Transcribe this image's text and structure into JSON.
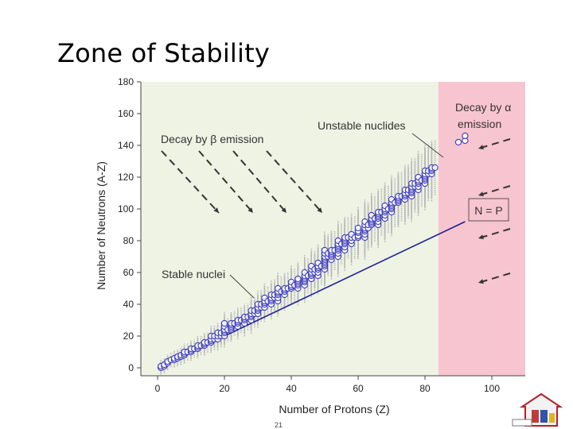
{
  "slide": {
    "title": "Zone of Stability",
    "page_number": "21"
  },
  "chart_data": {
    "type": "scatter",
    "xlabel": "Number of Protons (Z)",
    "ylabel": "Number of Neutrons (A-Z)",
    "xlim": [
      -5,
      110
    ],
    "ylim": [
      -5,
      180
    ],
    "x_ticks": [
      0,
      20,
      40,
      60,
      80,
      100
    ],
    "y_ticks": [
      0,
      20,
      40,
      60,
      80,
      100,
      120,
      140,
      160,
      180
    ],
    "alpha_region_start_z": 84,
    "annotations": {
      "beta": "Decay by β emission",
      "unstable": "Unstable nuclides",
      "alpha_line1": "Decay by α",
      "alpha_line2": "emission",
      "np": "N = P",
      "stable": "Stable nuclei"
    },
    "lines": [
      {
        "name": "N = P",
        "x": [
          0,
          92
        ],
        "y": [
          0,
          92
        ]
      }
    ],
    "stable_nuclei": [
      [
        1,
        0
      ],
      [
        1,
        1
      ],
      [
        2,
        1
      ],
      [
        2,
        2
      ],
      [
        3,
        3
      ],
      [
        3,
        4
      ],
      [
        4,
        5
      ],
      [
        5,
        5
      ],
      [
        5,
        6
      ],
      [
        6,
        6
      ],
      [
        6,
        7
      ],
      [
        7,
        7
      ],
      [
        7,
        8
      ],
      [
        8,
        8
      ],
      [
        8,
        9
      ],
      [
        8,
        10
      ],
      [
        9,
        10
      ],
      [
        10,
        10
      ],
      [
        10,
        11
      ],
      [
        10,
        12
      ],
      [
        11,
        12
      ],
      [
        12,
        12
      ],
      [
        12,
        13
      ],
      [
        12,
        14
      ],
      [
        13,
        14
      ],
      [
        14,
        14
      ],
      [
        14,
        15
      ],
      [
        14,
        16
      ],
      [
        15,
        16
      ],
      [
        16,
        16
      ],
      [
        16,
        17
      ],
      [
        16,
        18
      ],
      [
        16,
        20
      ],
      [
        17,
        18
      ],
      [
        17,
        20
      ],
      [
        18,
        18
      ],
      [
        18,
        20
      ],
      [
        18,
        22
      ],
      [
        19,
        20
      ],
      [
        19,
        22
      ],
      [
        20,
        20
      ],
      [
        20,
        22
      ],
      [
        20,
        23
      ],
      [
        20,
        24
      ],
      [
        20,
        26
      ],
      [
        20,
        28
      ],
      [
        21,
        24
      ],
      [
        22,
        24
      ],
      [
        22,
        25
      ],
      [
        22,
        26
      ],
      [
        22,
        27
      ],
      [
        22,
        28
      ],
      [
        23,
        28
      ],
      [
        24,
        26
      ],
      [
        24,
        28
      ],
      [
        24,
        29
      ],
      [
        24,
        30
      ],
      [
        25,
        30
      ],
      [
        26,
        28
      ],
      [
        26,
        30
      ],
      [
        26,
        31
      ],
      [
        26,
        32
      ],
      [
        27,
        32
      ],
      [
        28,
        30
      ],
      [
        28,
        32
      ],
      [
        28,
        33
      ],
      [
        28,
        34
      ],
      [
        28,
        36
      ],
      [
        29,
        34
      ],
      [
        29,
        36
      ],
      [
        30,
        34
      ],
      [
        30,
        36
      ],
      [
        30,
        37
      ],
      [
        30,
        38
      ],
      [
        30,
        40
      ],
      [
        31,
        38
      ],
      [
        31,
        40
      ],
      [
        32,
        38
      ],
      [
        32,
        40
      ],
      [
        32,
        41
      ],
      [
        32,
        42
      ],
      [
        32,
        44
      ],
      [
        33,
        42
      ],
      [
        34,
        40
      ],
      [
        34,
        42
      ],
      [
        34,
        43
      ],
      [
        34,
        44
      ],
      [
        34,
        46
      ],
      [
        35,
        44
      ],
      [
        35,
        46
      ],
      [
        36,
        42
      ],
      [
        36,
        44
      ],
      [
        36,
        46
      ],
      [
        36,
        47
      ],
      [
        36,
        48
      ],
      [
        36,
        50
      ],
      [
        37,
        48
      ],
      [
        38,
        46
      ],
      [
        38,
        48
      ],
      [
        38,
        49
      ],
      [
        38,
        50
      ],
      [
        39,
        50
      ],
      [
        40,
        50
      ],
      [
        40,
        51
      ],
      [
        40,
        52
      ],
      [
        40,
        54
      ],
      [
        41,
        52
      ],
      [
        42,
        50
      ],
      [
        42,
        52
      ],
      [
        42,
        53
      ],
      [
        42,
        54
      ],
      [
        42,
        55
      ],
      [
        42,
        56
      ],
      [
        44,
        52
      ],
      [
        44,
        54
      ],
      [
        44,
        55
      ],
      [
        44,
        56
      ],
      [
        44,
        57
      ],
      [
        44,
        58
      ],
      [
        44,
        60
      ],
      [
        45,
        58
      ],
      [
        46,
        56
      ],
      [
        46,
        58
      ],
      [
        46,
        59
      ],
      [
        46,
        60
      ],
      [
        46,
        62
      ],
      [
        46,
        64
      ],
      [
        47,
        60
      ],
      [
        47,
        62
      ],
      [
        48,
        58
      ],
      [
        48,
        60
      ],
      [
        48,
        62
      ],
      [
        48,
        63
      ],
      [
        48,
        64
      ],
      [
        48,
        66
      ],
      [
        49,
        64
      ],
      [
        50,
        62
      ],
      [
        50,
        64
      ],
      [
        50,
        65
      ],
      [
        50,
        66
      ],
      [
        50,
        67
      ],
      [
        50,
        68
      ],
      [
        50,
        69
      ],
      [
        50,
        70
      ],
      [
        50,
        72
      ],
      [
        50,
        74
      ],
      [
        51,
        70
      ],
      [
        51,
        72
      ],
      [
        52,
        68
      ],
      [
        52,
        70
      ],
      [
        52,
        71
      ],
      [
        52,
        72
      ],
      [
        52,
        73
      ],
      [
        52,
        74
      ],
      [
        53,
        74
      ],
      [
        54,
        70
      ],
      [
        54,
        72
      ],
      [
        54,
        74
      ],
      [
        54,
        75
      ],
      [
        54,
        76
      ],
      [
        54,
        77
      ],
      [
        54,
        78
      ],
      [
        54,
        80
      ],
      [
        55,
        78
      ],
      [
        56,
        74
      ],
      [
        56,
        76
      ],
      [
        56,
        78
      ],
      [
        56,
        79
      ],
      [
        56,
        80
      ],
      [
        56,
        81
      ],
      [
        56,
        82
      ],
      [
        57,
        82
      ],
      [
        58,
        78
      ],
      [
        58,
        80
      ],
      [
        58,
        82
      ],
      [
        58,
        84
      ],
      [
        59,
        82
      ],
      [
        60,
        82
      ],
      [
        60,
        83
      ],
      [
        60,
        85
      ],
      [
        60,
        86
      ],
      [
        60,
        88
      ],
      [
        62,
        82
      ],
      [
        62,
        84
      ],
      [
        62,
        86
      ],
      [
        62,
        87
      ],
      [
        62,
        88
      ],
      [
        62,
        90
      ],
      [
        62,
        92
      ],
      [
        63,
        88
      ],
      [
        63,
        90
      ],
      [
        64,
        90
      ],
      [
        64,
        91
      ],
      [
        64,
        92
      ],
      [
        64,
        93
      ],
      [
        64,
        94
      ],
      [
        64,
        96
      ],
      [
        65,
        94
      ],
      [
        66,
        90
      ],
      [
        66,
        92
      ],
      [
        66,
        94
      ],
      [
        66,
        95
      ],
      [
        66,
        96
      ],
      [
        66,
        97
      ],
      [
        66,
        98
      ],
      [
        67,
        98
      ],
      [
        68,
        94
      ],
      [
        68,
        96
      ],
      [
        68,
        98
      ],
      [
        68,
        99
      ],
      [
        68,
        100
      ],
      [
        68,
        102
      ],
      [
        69,
        100
      ],
      [
        70,
        98
      ],
      [
        70,
        100
      ],
      [
        70,
        101
      ],
      [
        70,
        102
      ],
      [
        70,
        103
      ],
      [
        70,
        104
      ],
      [
        70,
        106
      ],
      [
        71,
        104
      ],
      [
        72,
        104
      ],
      [
        72,
        105
      ],
      [
        72,
        106
      ],
      [
        72,
        107
      ],
      [
        72,
        108
      ],
      [
        73,
        108
      ],
      [
        74,
        106
      ],
      [
        74,
        108
      ],
      [
        74,
        109
      ],
      [
        74,
        110
      ],
      [
        74,
        112
      ],
      [
        75,
        110
      ],
      [
        75,
        112
      ],
      [
        76,
        108
      ],
      [
        76,
        110
      ],
      [
        76,
        111
      ],
      [
        76,
        112
      ],
      [
        76,
        113
      ],
      [
        76,
        114
      ],
      [
        76,
        116
      ],
      [
        77,
        114
      ],
      [
        77,
        116
      ],
      [
        78,
        112
      ],
      [
        78,
        114
      ],
      [
        78,
        116
      ],
      [
        78,
        117
      ],
      [
        78,
        118
      ],
      [
        78,
        120
      ],
      [
        79,
        118
      ],
      [
        80,
        116
      ],
      [
        80,
        118
      ],
      [
        80,
        119
      ],
      [
        80,
        120
      ],
      [
        80,
        121
      ],
      [
        80,
        122
      ],
      [
        80,
        124
      ],
      [
        81,
        122
      ],
      [
        81,
        124
      ],
      [
        82,
        122
      ],
      [
        82,
        124
      ],
      [
        82,
        125
      ],
      [
        82,
        126
      ],
      [
        83,
        126
      ],
      [
        90,
        142
      ],
      [
        92,
        143
      ],
      [
        92,
        146
      ]
    ]
  }
}
